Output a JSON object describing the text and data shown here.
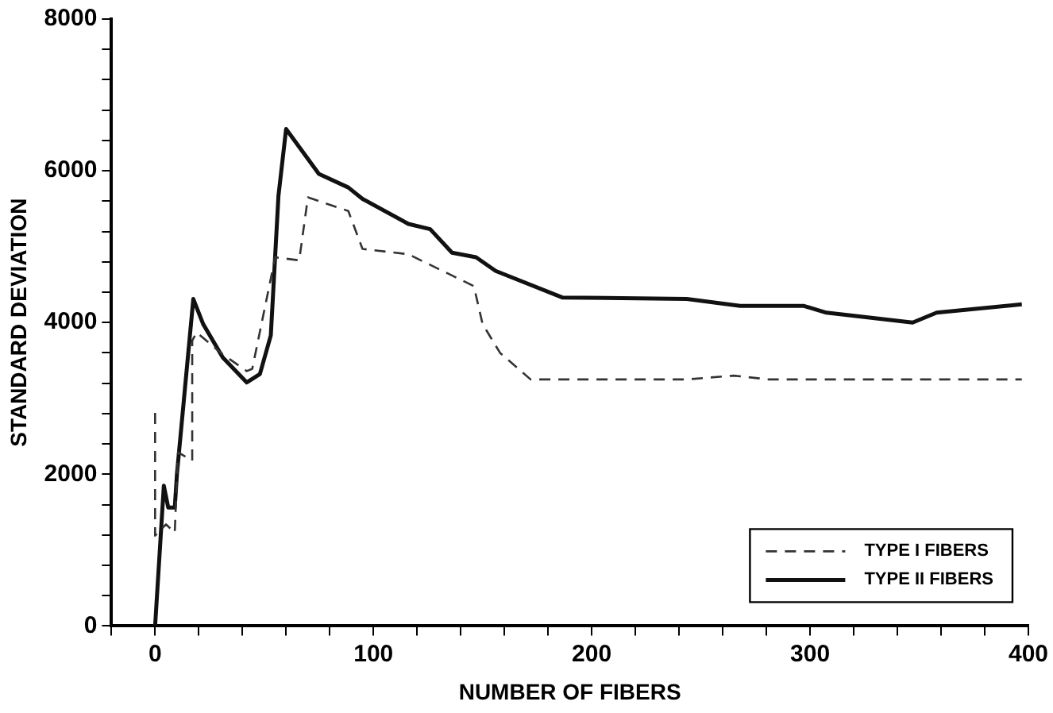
{
  "chart_data": {
    "type": "line",
    "xlabel": "NUMBER OF FIBERS",
    "ylabel": "STANDARD DEVIATION",
    "xlim": [
      -20,
      400
    ],
    "ylim": [
      0,
      8000
    ],
    "xticks": [
      {
        "value": -20,
        "label": null
      },
      0,
      {
        "value": 20,
        "label": null
      },
      {
        "value": 40,
        "label": null
      },
      {
        "value": 60,
        "label": null
      },
      {
        "value": 80,
        "label": null
      },
      100,
      {
        "value": 120,
        "label": null
      },
      {
        "value": 140,
        "label": null
      },
      {
        "value": 160,
        "label": null
      },
      {
        "value": 180,
        "label": null
      },
      200,
      {
        "value": 220,
        "label": null
      },
      {
        "value": 240,
        "label": null
      },
      {
        "value": 260,
        "label": null
      },
      {
        "value": 280,
        "label": null
      },
      300,
      {
        "value": 320,
        "label": null
      },
      {
        "value": 340,
        "label": null
      },
      {
        "value": 360,
        "label": null
      },
      {
        "value": 380,
        "label": null
      },
      400
    ],
    "yticks": [
      0,
      {
        "value": 400,
        "label": null
      },
      {
        "value": 800,
        "label": null
      },
      {
        "value": 1200,
        "label": null
      },
      {
        "value": 1600,
        "label": null
      },
      2000,
      {
        "value": 2400,
        "label": null
      },
      {
        "value": 2800,
        "label": null
      },
      {
        "value": 3200,
        "label": null
      },
      {
        "value": 3600,
        "label": null
      },
      4000,
      {
        "value": 4400,
        "label": null
      },
      {
        "value": 4800,
        "label": null
      },
      {
        "value": 5200,
        "label": null
      },
      {
        "value": 5600,
        "label": null
      },
      6000,
      {
        "value": 6400,
        "label": null
      },
      {
        "value": 6800,
        "label": null
      },
      {
        "value": 7200,
        "label": null
      },
      {
        "value": 7600,
        "label": null
      },
      8000
    ],
    "grid": false,
    "legend": "bottom right",
    "marker": "none",
    "series": [
      {
        "name": "TYPE I FIBERS",
        "color": "#333333",
        "line_style": "dashed",
        "x": [
          0,
          0,
          5,
          9,
          10.5,
          17,
          17,
          19,
          31,
          42,
          44.5,
          55,
          66,
          70,
          88.5,
          95,
          116,
          146,
          150,
          158,
          172,
          196,
          243.5,
          265,
          281,
          397
        ],
        "values": [
          2810,
          1190,
          1340,
          1230,
          2290,
          2180,
          3760,
          3870,
          3580,
          3360,
          3390,
          4860,
          4820,
          5650,
          5470,
          4970,
          4900,
          4480,
          3980,
          3600,
          3250,
          3250,
          3250,
          3300,
          3250,
          3250
        ]
      },
      {
        "name": "TYPE II FIBERS",
        "color": "#111111",
        "line_style": "solid",
        "x": [
          0,
          4,
          6,
          9,
          10,
          17.5,
          22,
          31,
          42,
          48,
          53,
          56.5,
          60,
          75,
          88.5,
          95,
          116,
          126,
          136,
          147,
          156,
          186.5,
          243.5,
          268,
          297,
          307.5,
          347,
          358,
          397
        ],
        "values": [
          0,
          1850,
          1560,
          1560,
          2000,
          4310,
          3980,
          3540,
          3210,
          3320,
          3830,
          5670,
          6550,
          5960,
          5780,
          5630,
          5300,
          5230,
          4920,
          4860,
          4680,
          4330,
          4310,
          4220,
          4220,
          4130,
          4000,
          4130,
          4240
        ]
      }
    ]
  }
}
